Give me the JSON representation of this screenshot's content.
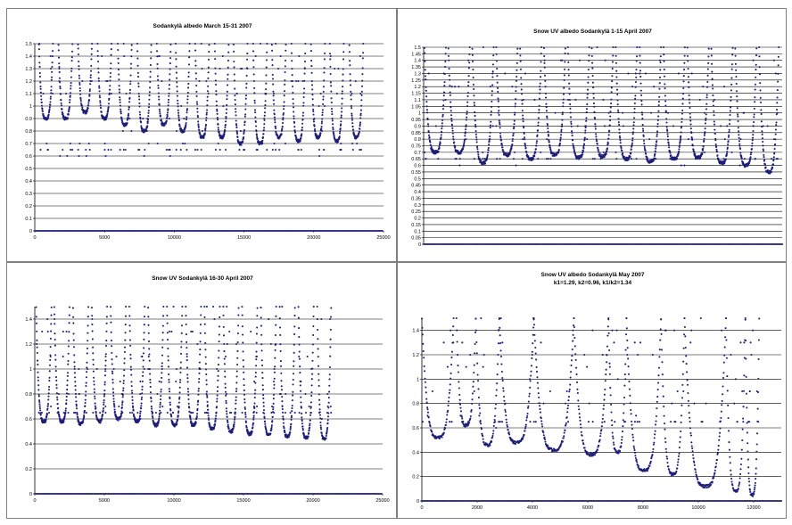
{
  "charts": [
    {
      "type": "scatter",
      "title": [
        "Sodankylä albedo March 15-31 2007"
      ],
      "xlim": [
        0,
        25000
      ],
      "ylim": [
        0,
        1.5
      ],
      "xticks": [
        0,
        5000,
        10000,
        15000,
        20000,
        25000
      ],
      "xtick_labels": [
        "0",
        "5000",
        "10000",
        "15000",
        "20000",
        "25000"
      ],
      "yticks": [
        0,
        0.1,
        0.2,
        0.3,
        0.4,
        0.5,
        0.6,
        0.7,
        0.8,
        0.9,
        1,
        1.1,
        1.2,
        1.3,
        1.4,
        1.5
      ],
      "ytick_labels": [
        "0",
        "0.1",
        "0.2",
        "0.3",
        "0.4",
        "0.5",
        "0.6",
        "0.7",
        "0.8",
        "0.9",
        "1",
        "1.1",
        "1.2",
        "1.3",
        "1.4",
        "1.5"
      ],
      "grid": true,
      "marker_color": "#1f1f7a",
      "days": [
        {
          "start": 300,
          "end": 1300,
          "min": 0.9
        },
        {
          "start": 1700,
          "end": 2700,
          "min": 0.9
        },
        {
          "start": 3100,
          "end": 4100,
          "min": 0.95
        },
        {
          "start": 4500,
          "end": 5500,
          "min": 0.9
        },
        {
          "start": 5950,
          "end": 6950,
          "min": 0.85
        },
        {
          "start": 7350,
          "end": 8350,
          "min": 0.8
        },
        {
          "start": 8750,
          "end": 9750,
          "min": 0.85
        },
        {
          "start": 10100,
          "end": 11100,
          "min": 0.8
        },
        {
          "start": 11500,
          "end": 12500,
          "min": 0.75
        },
        {
          "start": 12900,
          "end": 13900,
          "min": 0.75
        },
        {
          "start": 14250,
          "end": 15250,
          "min": 0.7
        },
        {
          "start": 15650,
          "end": 16650,
          "min": 0.7
        },
        {
          "start": 17000,
          "end": 18000,
          "min": 0.75
        },
        {
          "start": 18400,
          "end": 19400,
          "min": 0.72
        },
        {
          "start": 19800,
          "end": 20800,
          "min": 0.75
        },
        {
          "start": 21150,
          "end": 22150,
          "min": 0.72
        },
        {
          "start": 22550,
          "end": 23550,
          "min": 0.75
        }
      ]
    },
    {
      "type": "scatter",
      "title": [
        "Snow UV albedo Sodankylä 1-15 April 2007"
      ],
      "xlim": [
        0,
        21000
      ],
      "ylim": [
        0,
        1.5
      ],
      "xticks": [],
      "xtick_labels": [],
      "yticks": [
        0,
        0.05,
        0.1,
        0.15,
        0.2,
        0.25,
        0.3,
        0.35,
        0.4,
        0.45,
        0.5,
        0.55,
        0.6,
        0.65,
        0.7,
        0.75,
        0.8,
        0.85,
        0.9,
        0.95,
        1,
        1.05,
        1.1,
        1.15,
        1.2,
        1.25,
        1.3,
        1.35,
        1.4,
        1.45,
        1.5
      ],
      "ytick_labels": [
        "0",
        "0.05",
        "0.1",
        "0.15",
        "0.2",
        "0.25",
        "0.3",
        "0.35",
        "0.4",
        "0.45",
        "0.5",
        "0.55",
        "0.6",
        "0.65",
        "0.7",
        "0.75",
        "0.8",
        "0.85",
        "0.9",
        "0.95",
        "1",
        "1.05",
        "1.1",
        "1.15",
        "1.2",
        "1.25",
        "1.3",
        "1.35",
        "1.4",
        "1.45",
        "1.5"
      ],
      "grid": true,
      "marker_color": "#1f1f7a",
      "days": [
        {
          "start": 50,
          "end": 1300,
          "min": 0.7
        },
        {
          "start": 1450,
          "end": 2700,
          "min": 0.7
        },
        {
          "start": 2850,
          "end": 4100,
          "min": 0.62
        },
        {
          "start": 4250,
          "end": 5500,
          "min": 0.68
        },
        {
          "start": 5650,
          "end": 6900,
          "min": 0.65
        },
        {
          "start": 7050,
          "end": 8300,
          "min": 0.68
        },
        {
          "start": 8450,
          "end": 9700,
          "min": 0.66
        },
        {
          "start": 9850,
          "end": 11100,
          "min": 0.67
        },
        {
          "start": 11250,
          "end": 12500,
          "min": 0.65
        },
        {
          "start": 12650,
          "end": 13900,
          "min": 0.63
        },
        {
          "start": 14050,
          "end": 15300,
          "min": 0.65
        },
        {
          "start": 15450,
          "end": 16700,
          "min": 0.66
        },
        {
          "start": 16850,
          "end": 18100,
          "min": 0.62
        },
        {
          "start": 18250,
          "end": 19500,
          "min": 0.6
        },
        {
          "start": 19650,
          "end": 20800,
          "min": 0.55
        }
      ]
    },
    {
      "type": "scatter",
      "title": [
        "Snow UV Sodankylä 16-30 April 2007"
      ],
      "xlim": [
        0,
        25000
      ],
      "ylim": [
        0,
        1.5
      ],
      "xticks": [
        0,
        5000,
        10000,
        15000,
        20000,
        25000
      ],
      "xtick_labels": [
        "0",
        "5000",
        "10000",
        "15000",
        "20000",
        "25000"
      ],
      "yticks": [
        0,
        0.2,
        0.4,
        0.6,
        0.8,
        1,
        1.2,
        1.4
      ],
      "ytick_labels": [
        "0",
        "0.2",
        "0.4",
        "0.6",
        "0.8",
        "1",
        "1.2",
        "1.4"
      ],
      "grid": true,
      "marker_color": "#1f1f7a",
      "days": [
        {
          "start": 100,
          "end": 1200,
          "min": 0.58
        },
        {
          "start": 1400,
          "end": 2500,
          "min": 0.58
        },
        {
          "start": 2750,
          "end": 3850,
          "min": 0.56
        },
        {
          "start": 4100,
          "end": 5200,
          "min": 0.58
        },
        {
          "start": 5450,
          "end": 6550,
          "min": 0.6
        },
        {
          "start": 6800,
          "end": 7900,
          "min": 0.58
        },
        {
          "start": 8150,
          "end": 9250,
          "min": 0.55
        },
        {
          "start": 9500,
          "end": 10600,
          "min": 0.55
        },
        {
          "start": 10850,
          "end": 11950,
          "min": 0.55
        },
        {
          "start": 12200,
          "end": 13300,
          "min": 0.52
        },
        {
          "start": 13550,
          "end": 14650,
          "min": 0.5
        },
        {
          "start": 14900,
          "end": 16000,
          "min": 0.48
        },
        {
          "start": 16250,
          "end": 17350,
          "min": 0.48
        },
        {
          "start": 17600,
          "end": 18700,
          "min": 0.46
        },
        {
          "start": 18950,
          "end": 20050,
          "min": 0.45
        },
        {
          "start": 20300,
          "end": 21300,
          "min": 0.44
        }
      ]
    },
    {
      "type": "scatter",
      "title": [
        "Snow UV albedo Sodankylä May 2007",
        "k1=1.29, k2=0.96, k1/k2=1.34"
      ],
      "xlim": [
        0,
        13000
      ],
      "ylim": [
        0,
        1.5
      ],
      "xticks": [
        0,
        2000,
        4000,
        6000,
        8000,
        10000,
        12000
      ],
      "xtick_labels": [
        "0",
        "2000",
        "4000",
        "6000",
        "8000",
        "10000",
        "12000"
      ],
      "yticks": [
        0,
        0.2,
        0.4,
        0.6,
        0.8,
        1,
        1.2,
        1.4
      ],
      "ytick_labels": [
        "0",
        "0.2",
        "0.4",
        "0.6",
        "0.8",
        "1",
        "1.2",
        "1.4"
      ],
      "grid": true,
      "marker_color": "#1f1f7a",
      "days": [
        {
          "start": 0,
          "end": 1150,
          "min": 0.52
        },
        {
          "start": 1250,
          "end": 1950,
          "min": 0.62
        },
        {
          "start": 1950,
          "end": 2800,
          "min": 0.46
        },
        {
          "start": 2800,
          "end": 4050,
          "min": 0.48
        },
        {
          "start": 4050,
          "end": 5500,
          "min": 0.42
        },
        {
          "start": 5500,
          "end": 6750,
          "min": 0.38
        },
        {
          "start": 6750,
          "end": 7400,
          "min": 0.4
        },
        {
          "start": 7400,
          "end": 8650,
          "min": 0.25
        },
        {
          "start": 8650,
          "end": 9500,
          "min": 0.22
        },
        {
          "start": 9500,
          "end": 11000,
          "min": 0.12
        },
        {
          "start": 11000,
          "end": 11700,
          "min": 0.08
        },
        {
          "start": 11700,
          "end": 12200,
          "min": 0.05
        }
      ]
    }
  ]
}
